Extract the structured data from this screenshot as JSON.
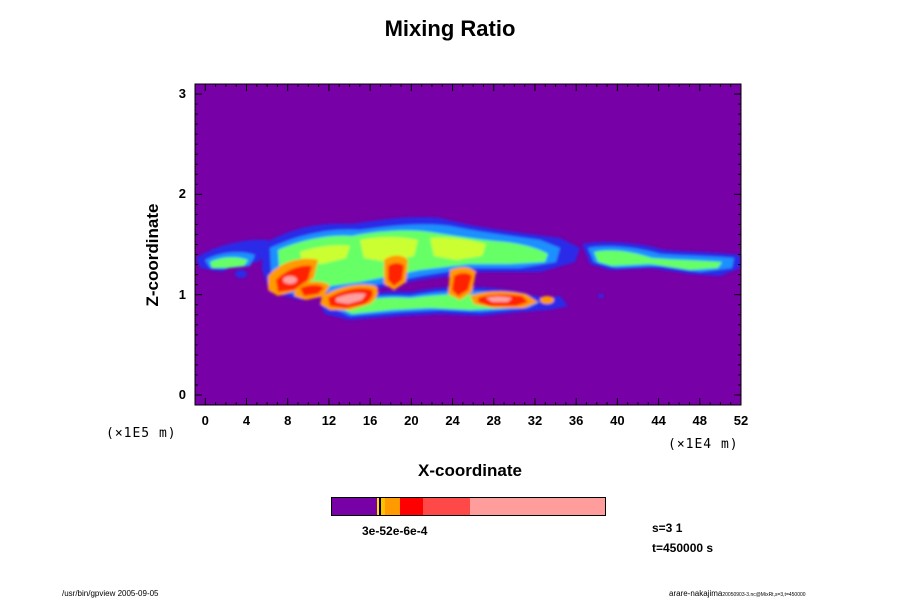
{
  "chart_data": {
    "type": "heatmap",
    "title": "Mixing Ratio",
    "xlabel": "X-coordinate",
    "ylabel": "Z-coordinate",
    "x_scale_note": "(×1E4 m)",
    "y_scale_note": "(×1E5 m)",
    "xlim": [
      -1,
      52
    ],
    "ylim": [
      -0.1,
      3.1
    ],
    "x_ticks": [
      "0",
      "4",
      "8",
      "12",
      "16",
      "20",
      "24",
      "28",
      "32",
      "36",
      "40",
      "44",
      "48",
      "52"
    ],
    "y_ticks": [
      "0",
      "1",
      "2",
      "3"
    ],
    "background_color": "#7700a6",
    "colorbar_labels_overlapping": "3e-52e-6e-4",
    "annotations": [
      "s=3 1",
      "t=450000 s"
    ],
    "footer_left": "/usr/bin/gpview 2005-09-05",
    "footer_right": "arare-nakajima",
    "footer_right_small": "20050903-3.nc@MixRt,s=3,t=450000"
  },
  "colors": {
    "palette": [
      "#7700a6",
      "#2a2ae8",
      "#1e90ff",
      "#00e0e0",
      "#66ff66",
      "#ccff33",
      "#ffe000",
      "#ff9a00",
      "#ff2000",
      "#ff5050",
      "#ffa0a0"
    ]
  }
}
